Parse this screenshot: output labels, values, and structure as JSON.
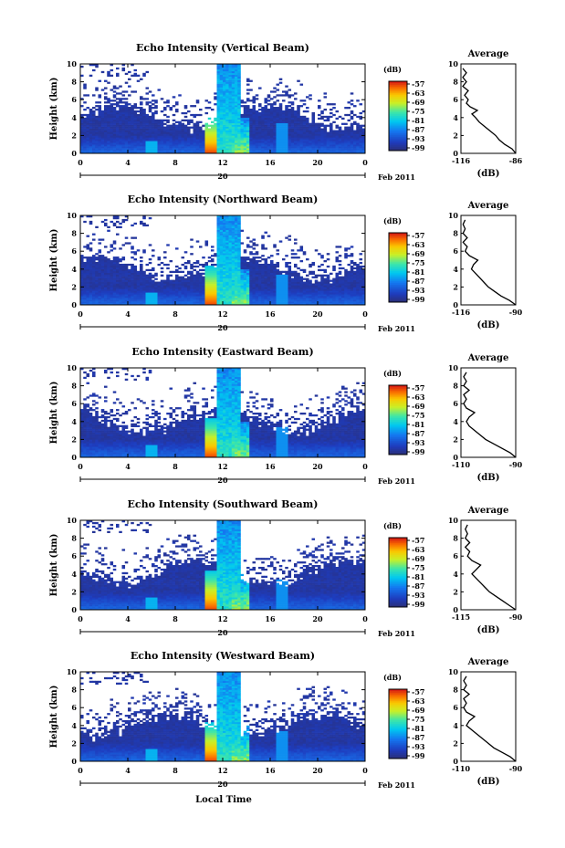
{
  "figure": {
    "xlabel": "Local Time",
    "date_day": "20",
    "date_month": "Feb 2011",
    "ylabel": "Height (km)",
    "colorbar_unit": "(dB)",
    "colorbar_ticks": [
      "-57",
      "-63",
      "-69",
      "-75",
      "-81",
      "-87",
      "-93",
      "-99"
    ],
    "avg_title": "Average",
    "avg_xlabel": "(dB)"
  },
  "chart_data": [
    {
      "type": "heatmap",
      "title": "Echo Intensity (Vertical Beam)",
      "xlabel": "Local Time",
      "ylabel": "Height (km)",
      "x_ticks": [
        "0",
        "4",
        "8",
        "12",
        "16",
        "20",
        "0"
      ],
      "y_ticks": [
        "0",
        "2",
        "4",
        "6",
        "8",
        "10"
      ],
      "xlim": [
        0,
        24
      ],
      "ylim": [
        0,
        10
      ],
      "colorbar": {
        "label": "(dB)",
        "ticks": [
          -57,
          -63,
          -69,
          -75,
          -81,
          -87,
          -93,
          -99
        ]
      },
      "profile": {
        "title": "Average",
        "xlabel": "(dB)",
        "x_ticks": [
          "-116",
          "-86"
        ],
        "xlim": [
          -116,
          -86
        ],
        "y_ticks": [
          "0",
          "2",
          "4",
          "6",
          "8",
          "10"
        ],
        "ylim": [
          0,
          10
        ],
        "points": [
          [
            -86,
            0
          ],
          [
            -88,
            0.5
          ],
          [
            -92,
            1
          ],
          [
            -95,
            1.5
          ],
          [
            -97,
            2
          ],
          [
            -100,
            2.5
          ],
          [
            -103,
            3
          ],
          [
            -106,
            3.5
          ],
          [
            -108,
            4
          ],
          [
            -110,
            4.4
          ],
          [
            -107,
            4.8
          ],
          [
            -111,
            5.2
          ],
          [
            -113,
            5.6
          ],
          [
            -112,
            6.0
          ],
          [
            -114,
            6.5
          ],
          [
            -112,
            7.0
          ],
          [
            -115,
            7.5
          ],
          [
            -113,
            8.0
          ],
          [
            -115,
            8.5
          ],
          [
            -113,
            9.0
          ],
          [
            -115,
            9.5
          ]
        ]
      }
    },
    {
      "type": "heatmap",
      "title": "Echo Intensity (Northward Beam)",
      "xlabel": "Local Time",
      "ylabel": "Height (km)",
      "x_ticks": [
        "0",
        "4",
        "8",
        "12",
        "16",
        "20",
        "0"
      ],
      "y_ticks": [
        "0",
        "2",
        "4",
        "6",
        "8",
        "10"
      ],
      "xlim": [
        0,
        24
      ],
      "ylim": [
        0,
        10
      ],
      "colorbar": {
        "label": "(dB)",
        "ticks": [
          -57,
          -63,
          -69,
          -75,
          -81,
          -87,
          -93,
          -99
        ]
      },
      "profile": {
        "title": "Average",
        "xlabel": "(dB)",
        "x_ticks": [
          "-116",
          "-90"
        ],
        "xlim": [
          -116,
          -90
        ],
        "y_ticks": [
          "0",
          "2",
          "4",
          "6",
          "8",
          "10"
        ],
        "ylim": [
          0,
          10
        ],
        "points": [
          [
            -90,
            0
          ],
          [
            -93,
            0.5
          ],
          [
            -97,
            1
          ],
          [
            -100,
            1.5
          ],
          [
            -103,
            2
          ],
          [
            -105,
            2.5
          ],
          [
            -107,
            3
          ],
          [
            -109,
            3.5
          ],
          [
            -111,
            4
          ],
          [
            -110,
            4.5
          ],
          [
            -108,
            5
          ],
          [
            -112,
            5.5
          ],
          [
            -114,
            6
          ],
          [
            -113,
            6.5
          ],
          [
            -115,
            7
          ],
          [
            -113,
            7.5
          ],
          [
            -115,
            8
          ],
          [
            -114,
            8.5
          ],
          [
            -115,
            9
          ],
          [
            -114,
            9.5
          ]
        ]
      }
    },
    {
      "type": "heatmap",
      "title": "Echo Intensity (Eastward Beam)",
      "xlabel": "Local Time",
      "ylabel": "Height (km)",
      "x_ticks": [
        "0",
        "4",
        "8",
        "12",
        "16",
        "20",
        "0"
      ],
      "y_ticks": [
        "0",
        "2",
        "4",
        "6",
        "8",
        "10"
      ],
      "xlim": [
        0,
        24
      ],
      "ylim": [
        0,
        10
      ],
      "colorbar": {
        "label": "(dB)",
        "ticks": [
          -57,
          -63,
          -69,
          -75,
          -81,
          -87,
          -93,
          -99
        ]
      },
      "profile": {
        "title": "Average",
        "xlabel": "(dB)",
        "x_ticks": [
          "-110",
          "-90"
        ],
        "xlim": [
          -110,
          -90
        ],
        "y_ticks": [
          "0",
          "2",
          "4",
          "6",
          "8",
          "10"
        ],
        "ylim": [
          0,
          10
        ],
        "points": [
          [
            -90,
            0
          ],
          [
            -92,
            0.5
          ],
          [
            -95,
            1
          ],
          [
            -98,
            1.5
          ],
          [
            -101,
            2
          ],
          [
            -103,
            2.5
          ],
          [
            -105,
            3
          ],
          [
            -107,
            3.5
          ],
          [
            -108,
            4
          ],
          [
            -107,
            4.5
          ],
          [
            -105,
            5
          ],
          [
            -108,
            5.5
          ],
          [
            -109,
            6
          ],
          [
            -108,
            6.5
          ],
          [
            -109,
            7
          ],
          [
            -107,
            7.5
          ],
          [
            -109,
            8
          ],
          [
            -108,
            8.5
          ],
          [
            -109,
            9
          ],
          [
            -108,
            9.5
          ]
        ]
      }
    },
    {
      "type": "heatmap",
      "title": "Echo Intensity (Southward Beam)",
      "xlabel": "Local Time",
      "ylabel": "Height (km)",
      "x_ticks": [
        "0",
        "4",
        "8",
        "12",
        "16",
        "20",
        "0"
      ],
      "y_ticks": [
        "0",
        "2",
        "4",
        "6",
        "8",
        "10"
      ],
      "xlim": [
        0,
        24
      ],
      "ylim": [
        0,
        10
      ],
      "colorbar": {
        "label": "(dB)",
        "ticks": [
          -57,
          -63,
          -69,
          -75,
          -81,
          -87,
          -93,
          -99
        ]
      },
      "profile": {
        "title": "Average",
        "xlabel": "(dB)",
        "x_ticks": [
          "-115",
          "-90"
        ],
        "xlim": [
          -115,
          -90
        ],
        "y_ticks": [
          "0",
          "2",
          "4",
          "6",
          "8",
          "10"
        ],
        "ylim": [
          0,
          10
        ],
        "points": [
          [
            -90,
            0
          ],
          [
            -93,
            0.5
          ],
          [
            -96,
            1
          ],
          [
            -99,
            1.5
          ],
          [
            -102,
            2
          ],
          [
            -104,
            2.5
          ],
          [
            -106,
            3
          ],
          [
            -108,
            3.5
          ],
          [
            -110,
            4
          ],
          [
            -108,
            4.5
          ],
          [
            -106,
            5
          ],
          [
            -110,
            5.5
          ],
          [
            -112,
            6
          ],
          [
            -111,
            6.5
          ],
          [
            -113,
            7
          ],
          [
            -111,
            7.5
          ],
          [
            -113,
            8
          ],
          [
            -112,
            8.5
          ],
          [
            -113,
            9
          ],
          [
            -112,
            9.5
          ]
        ]
      }
    },
    {
      "type": "heatmap",
      "title": "Echo Intensity (Westward Beam)",
      "xlabel": "Local Time",
      "ylabel": "Height (km)",
      "x_ticks": [
        "0",
        "4",
        "8",
        "12",
        "16",
        "20",
        "0"
      ],
      "y_ticks": [
        "0",
        "2",
        "4",
        "6",
        "8",
        "10"
      ],
      "xlim": [
        0,
        24
      ],
      "ylim": [
        0,
        10
      ],
      "colorbar": {
        "label": "(dB)",
        "ticks": [
          -57,
          -63,
          -69,
          -75,
          -81,
          -87,
          -93,
          -99
        ]
      },
      "profile": {
        "title": "Average",
        "xlabel": "(dB)",
        "x_ticks": [
          "-110",
          "-90"
        ],
        "xlim": [
          -110,
          -90
        ],
        "y_ticks": [
          "0",
          "2",
          "4",
          "6",
          "8",
          "10"
        ],
        "ylim": [
          0,
          10
        ],
        "points": [
          [
            -90,
            0
          ],
          [
            -92,
            0.5
          ],
          [
            -95,
            1
          ],
          [
            -98,
            1.5
          ],
          [
            -100,
            2
          ],
          [
            -102,
            2.5
          ],
          [
            -104,
            3
          ],
          [
            -106,
            3.5
          ],
          [
            -108,
            4
          ],
          [
            -107,
            4.5
          ],
          [
            -105,
            5
          ],
          [
            -108,
            5.5
          ],
          [
            -109,
            6
          ],
          [
            -108,
            6.5
          ],
          [
            -109,
            7
          ],
          [
            -107,
            7.5
          ],
          [
            -109,
            8
          ],
          [
            -108,
            8.5
          ],
          [
            -109,
            9
          ],
          [
            -108,
            9.5
          ]
        ]
      }
    }
  ]
}
